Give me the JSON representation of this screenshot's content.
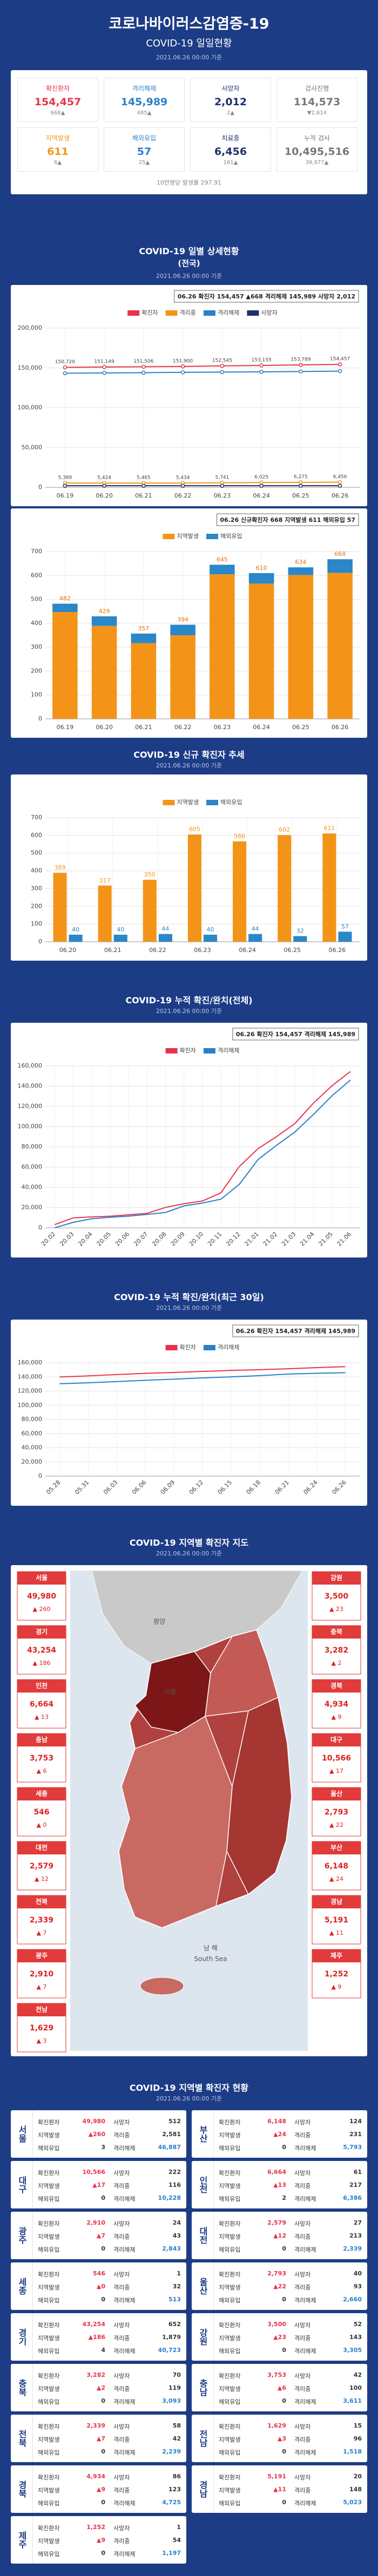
{
  "header": {
    "title": "코로나바이러스감염증-19",
    "subtitle": "COVID-19 일일현황",
    "date": "2021.06.26 00:00 기준"
  },
  "summary": {
    "items": [
      {
        "label": "확진환자",
        "value": "154,457",
        "change": "668▲",
        "color": "#e8334a"
      },
      {
        "label": "격리해제",
        "value": "145,989",
        "change": "485▲",
        "color": "#2a7fc9"
      },
      {
        "label": "사망자",
        "value": "2,012",
        "change": "2▲",
        "color": "#1f2f6b"
      },
      {
        "label": "검사진행",
        "value": "114,573",
        "change": "▼2,614",
        "color": "#777777"
      },
      {
        "label": "지역발생",
        "value": "611",
        "change": "6▲",
        "color": "#f39419"
      },
      {
        "label": "해외유입",
        "value": "57",
        "change": "25▲",
        "color": "#2a7fc9"
      },
      {
        "label": "치료중",
        "value": "6,456",
        "change": "181▲",
        "color": "#1f2f6b"
      },
      {
        "label": "누적 검사",
        "value": "10,495,516",
        "change": "39,977▲",
        "color": "#777777"
      }
    ],
    "footnote": "10만명당 발생률 297.91"
  },
  "chart_data": [
    {
      "type": "line",
      "title": "COVID-19 일별 상세현황",
      "subtitle": "(전국)",
      "date": "2021.06.26 00:00 기준",
      "annotation": "06.26 확진자 154,457 ▲668 격리해제 145,989 사망자 2,012",
      "categories": [
        "06.19",
        "06.20",
        "06.21",
        "06.22",
        "06.23",
        "06.24",
        "06.25",
        "06.26"
      ],
      "series": [
        {
          "name": "확진자",
          "color": "#e8334a",
          "values": [
            150720,
            151149,
            151506,
            151900,
            152545,
            153155,
            153789,
            154457
          ],
          "value_labels": [
            "150,720",
            "151,149",
            "151,506",
            "151,900",
            "152,545",
            "153,155",
            "153,789",
            "154,457"
          ]
        },
        {
          "name": "격리중",
          "color": "#f39419",
          "values": [
            5389,
            5424,
            5465,
            5434,
            5741,
            6025,
            6275,
            6456
          ],
          "value_labels": [
            "5,389",
            "5,424",
            "5,465",
            "5,434",
            "5,741",
            "6,025",
            "6,275",
            "6,456"
          ]
        },
        {
          "name": "격리해제",
          "color": "#2a7fc9",
          "values": [
            143327,
            143720,
            144035,
            144459,
            144796,
            145121,
            145504,
            145989
          ]
        },
        {
          "name": "사망자",
          "color": "#1f2f6b",
          "values": [
            2004,
            2005,
            2006,
            2007,
            2008,
            2009,
            2010,
            2012
          ]
        }
      ],
      "ylim": [
        0,
        200000
      ],
      "yticks": [
        0,
        {
          "value": 50000,
          "label": "50,000"
        },
        {
          "value": 100000,
          "label": "100,000"
        },
        {
          "value": 150000,
          "label": "150,000"
        },
        {
          "value": 200000,
          "label": "200,000"
        }
      ],
      "grid": true,
      "markers": true
    },
    {
      "type": "stacked_bar",
      "annotation": "06.26 신규확진자 668 지역발생 611 해외유입 57",
      "categories": [
        "06.19",
        "06.20",
        "06.21",
        "06.22",
        "06.23",
        "06.24",
        "06.25",
        "06.26"
      ],
      "series": [
        {
          "name": "지역발생",
          "color": "#f39419",
          "values": [
            447,
            389,
            317,
            350,
            605,
            566,
            602,
            611
          ]
        },
        {
          "name": "해외유입",
          "color": "#2a87c8",
          "values": [
            35,
            40,
            40,
            44,
            40,
            44,
            32,
            57
          ]
        }
      ],
      "total_labels": [
        "482",
        "429",
        "357",
        "394",
        "645",
        "610",
        "634",
        "668"
      ],
      "ylim": [
        0,
        700
      ],
      "yticks": [
        0,
        100,
        200,
        300,
        400,
        500,
        600,
        700
      ],
      "grid": true
    },
    {
      "type": "grouped_bar",
      "title": "COVID-19 신규 확진자 추세",
      "date": "2021.06.26 00:00 기준",
      "categories": [
        "06.20",
        "06.21",
        "06.22",
        "06.23",
        "06.24",
        "06.25",
        "06.26"
      ],
      "series": [
        {
          "name": "지역발생",
          "color": "#f39419",
          "values": [
            389,
            317,
            350,
            605,
            566,
            602,
            611
          ]
        },
        {
          "name": "해외유입",
          "color": "#2a87c8",
          "values": [
            40,
            40,
            44,
            40,
            44,
            32,
            57
          ]
        }
      ],
      "ylim": [
        0,
        700
      ],
      "yticks": [
        0,
        100,
        200,
        300,
        400,
        500,
        600,
        700
      ],
      "grid": true
    },
    {
      "type": "line",
      "title": "COVID-19 누적 확진/완치(전체)",
      "date": "2021.06.26 00:00 기준",
      "annotation": "06.26 확진자 154,457 격리해제 145,989",
      "categories": [
        "20.02",
        "20.03",
        "20.04",
        "20.05",
        "20.06",
        "20.07",
        "20.08",
        "20.09",
        "20.10",
        "20.11",
        "20.12",
        "21.01",
        "21.02",
        "21.03",
        "21.04",
        "21.05",
        "21.06"
      ],
      "series": [
        {
          "name": "확진자",
          "color": "#e8334a",
          "values": [
            3150,
            9786,
            10774,
            11468,
            12850,
            14336,
            20182,
            23812,
            26511,
            34652,
            60740,
            78205,
            90029,
            103088,
            123240,
            140340,
            154457
          ]
        },
        {
          "name": "격리해제",
          "color": "#2a7fc9",
          "values": [
            27,
            5408,
            8922,
            10405,
            11537,
            13233,
            15198,
            21666,
            24470,
            28352,
            43135,
            67403,
            81460,
            94685,
            112053,
            130402,
            145989
          ]
        }
      ],
      "ylim": [
        0,
        160000
      ],
      "yticks": [
        0,
        {
          "value": 20000,
          "label": "20,000"
        },
        {
          "value": 40000,
          "label": "40,000"
        },
        {
          "value": 60000,
          "label": "60,000"
        },
        {
          "value": 80000,
          "label": "80,000"
        },
        {
          "value": 100000,
          "label": "100,000"
        },
        {
          "value": 120000,
          "label": "120,000"
        },
        {
          "value": 140000,
          "label": "140,000"
        },
        {
          "value": 160000,
          "label": "160,000"
        }
      ],
      "grid": true,
      "markers": false
    },
    {
      "type": "line",
      "title": "COVID-19 누적 확진/완치(최근 30일)",
      "date": "2021.06.26 00:00 기준",
      "annotation": "06.26 확진자 154,457 격리해제 145,989",
      "categories": [
        "05.28",
        "05.31",
        "06.03",
        "06.06",
        "06.09",
        "06.12",
        "06.15",
        "06.18",
        "06.21",
        "06.24",
        "06.26"
      ],
      "series": [
        {
          "name": "확진자",
          "color": "#e8334a",
          "values": [
            139910,
            141476,
            143373,
            145065,
            146303,
            147765,
            149191,
            150230,
            151506,
            153155,
            154457
          ]
        },
        {
          "name": "격리해제",
          "color": "#2a7fc9",
          "values": [
            130350,
            131760,
            133436,
            135250,
            136874,
            138543,
            140119,
            141789,
            144035,
            145121,
            145989
          ]
        }
      ],
      "ylim": [
        0,
        160000
      ],
      "yticks": [
        0,
        {
          "value": 20000,
          "label": "20,000"
        },
        {
          "value": 40000,
          "label": "40,000"
        },
        {
          "value": 60000,
          "label": "60,000"
        },
        {
          "value": 80000,
          "label": "80,000"
        },
        {
          "value": 100000,
          "label": "100,000"
        },
        {
          "value": 120000,
          "label": "120,000"
        },
        {
          "value": 140000,
          "label": "140,000"
        },
        {
          "value": 160000,
          "label": "160,000"
        }
      ],
      "grid": true,
      "markers": false
    }
  ],
  "map": {
    "title": "COVID-19 지역별 확진자 지도",
    "date": "2021.06.26 00:00 기준",
    "labels": [
      "평양",
      "서울",
      "남 해",
      "South Sea"
    ],
    "left": [
      {
        "name": "서울",
        "value": "49,980",
        "change": "▲ 260"
      },
      {
        "name": "경기",
        "value": "43,254",
        "change": "▲ 186"
      },
      {
        "name": "인천",
        "value": "6,664",
        "change": "▲ 13"
      },
      {
        "name": "충남",
        "value": "3,753",
        "change": "▲ 6"
      },
      {
        "name": "세종",
        "value": "546",
        "change": "▲ 0"
      },
      {
        "name": "대전",
        "value": "2,579",
        "change": "▲ 12"
      },
      {
        "name": "전북",
        "value": "2,339",
        "change": "▲ 7"
      },
      {
        "name": "광주",
        "value": "2,910",
        "change": "▲ 7"
      },
      {
        "name": "전남",
        "value": "1,629",
        "change": "▲ 3"
      }
    ],
    "right": [
      {
        "name": "강원",
        "value": "3,500",
        "change": "▲ 23"
      },
      {
        "name": "충북",
        "value": "3,282",
        "change": "▲ 2"
      },
      {
        "name": "경북",
        "value": "4,934",
        "change": "▲ 9"
      },
      {
        "name": "대구",
        "value": "10,566",
        "change": "▲ 17"
      },
      {
        "name": "울산",
        "value": "2,793",
        "change": "▲ 22"
      },
      {
        "name": "부산",
        "value": "6,148",
        "change": "▲ 24"
      },
      {
        "name": "경남",
        "value": "5,191",
        "change": "▲ 11"
      },
      {
        "name": "제주",
        "value": "1,252",
        "change": "▲ 9"
      }
    ]
  },
  "regions": {
    "title": "COVID-19 지역별 확진자 현황",
    "date": "2021.06.26 00:00 기준",
    "fields": [
      "확진환자",
      "사망자",
      "지역발생",
      "격리중",
      "해외유입",
      "격리해제"
    ],
    "rows": [
      {
        "name": "서울",
        "values": [
          "49,980",
          "512",
          "▲260",
          "2,581",
          "3",
          "46,887"
        ]
      },
      {
        "name": "부산",
        "values": [
          "6,148",
          "124",
          "▲24",
          "231",
          "0",
          "5,793"
        ]
      },
      {
        "name": "대구",
        "values": [
          "10,566",
          "222",
          "▲17",
          "116",
          "0",
          "10,228"
        ]
      },
      {
        "name": "인천",
        "values": [
          "6,664",
          "61",
          "▲13",
          "217",
          "2",
          "6,386"
        ]
      },
      {
        "name": "광주",
        "values": [
          "2,910",
          "24",
          "▲7",
          "43",
          "0",
          "2,843"
        ]
      },
      {
        "name": "대전",
        "values": [
          "2,579",
          "27",
          "▲12",
          "213",
          "0",
          "2,339"
        ]
      },
      {
        "name": "세종",
        "values": [
          "546",
          "1",
          "▲0",
          "32",
          "0",
          "513"
        ]
      },
      {
        "name": "울산",
        "values": [
          "2,793",
          "40",
          "▲22",
          "93",
          "0",
          "2,660"
        ]
      },
      {
        "name": "경기",
        "values": [
          "43,254",
          "652",
          "▲186",
          "1,879",
          "4",
          "40,723"
        ]
      },
      {
        "name": "강원",
        "values": [
          "3,500",
          "52",
          "▲23",
          "143",
          "0",
          "3,305"
        ]
      },
      {
        "name": "충북",
        "values": [
          "3,282",
          "70",
          "▲2",
          "119",
          "0",
          "3,093"
        ]
      },
      {
        "name": "충남",
        "values": [
          "3,753",
          "42",
          "▲6",
          "100",
          "0",
          "3,611"
        ]
      },
      {
        "name": "전북",
        "values": [
          "2,339",
          "58",
          "▲7",
          "42",
          "0",
          "2,239"
        ]
      },
      {
        "name": "전남",
        "values": [
          "1,629",
          "15",
          "▲3",
          "96",
          "0",
          "1,518"
        ]
      },
      {
        "name": "경북",
        "values": [
          "4,934",
          "86",
          "▲9",
          "123",
          "0",
          "4,725"
        ]
      },
      {
        "name": "경남",
        "values": [
          "5,191",
          "20",
          "▲11",
          "148",
          "0",
          "5,023"
        ]
      },
      {
        "name": "제주",
        "values": [
          "1,252",
          "1",
          "▲9",
          "54",
          "0",
          "1,197"
        ]
      }
    ]
  }
}
